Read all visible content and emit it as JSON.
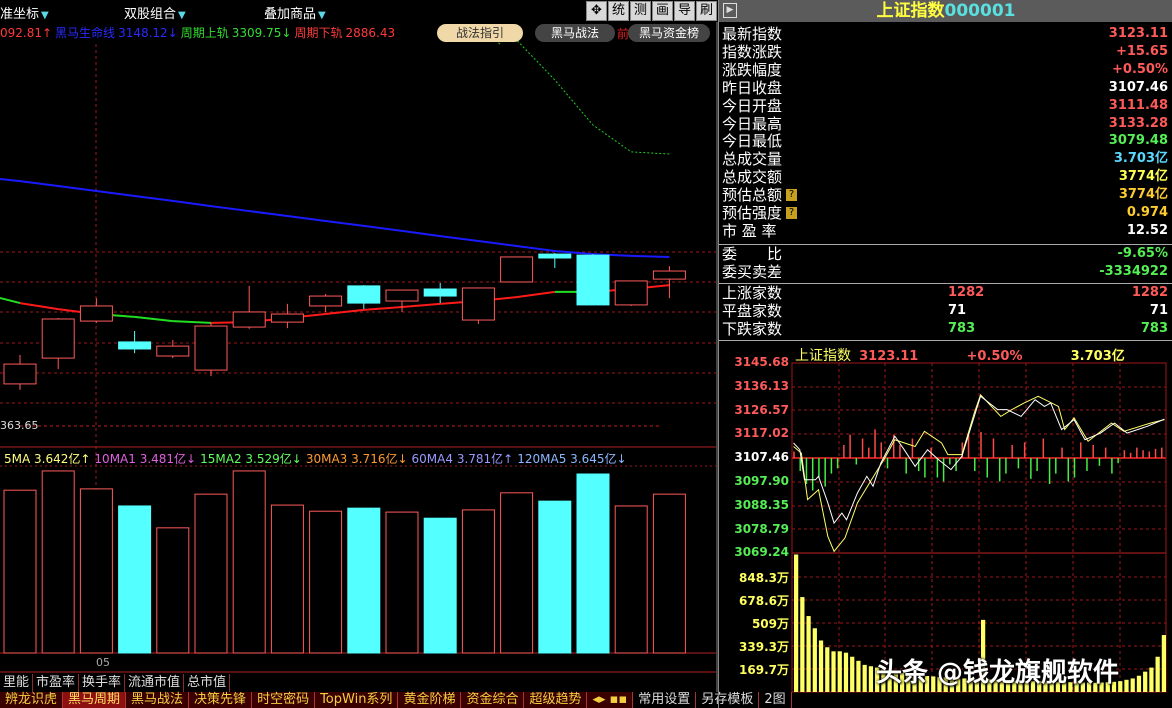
{
  "colors": {
    "up": "#ff5a5a",
    "down": "#54ffff",
    "grid": "#a01818",
    "lifeline": "#1a1aff",
    "support_up": "#ff1a1a",
    "support_down": "#22dd22",
    "upper_band": "#22cc22",
    "price_line": "#ffffff",
    "avg_line": "#ffff66",
    "vol_bar": "#ffff66"
  },
  "topbar": {
    "coord_label": "准坐标",
    "dual_label": "双股组合",
    "overlay_label": "叠加商品",
    "tools": [
      {
        "icon": "move-icon",
        "label": "✥"
      },
      {
        "label": "统"
      },
      {
        "label": "测"
      },
      {
        "label": "画"
      },
      {
        "label": "导"
      },
      {
        "label": "刷"
      }
    ]
  },
  "legend": {
    "v0": "092.81↑",
    "lifeline_name": "黑马生命线",
    "lifeline_val": "3148.12↓",
    "upper_name": "周期上轨",
    "upper_val": "3309.75↓",
    "lower_name": "周期下轨",
    "lower_val": "2886.43"
  },
  "pills": {
    "guide": "战法指引",
    "heima": "黑马战法",
    "front": "前",
    "fund": "黑马资金榜"
  },
  "main": {
    "low_marker": "363.65",
    "date_label": "05"
  },
  "kline": {
    "candles": [
      {
        "o": 3079.8,
        "h": 3090.9,
        "l": 3077.5,
        "c": 3087.4
      },
      {
        "o": 3089.7,
        "h": 3105.1,
        "l": 3085.5,
        "c": 3104.7
      },
      {
        "o": 3103.9,
        "h": 3112.7,
        "l": 3103.2,
        "c": 3109.7
      },
      {
        "o": 3095.9,
        "h": 3100.1,
        "l": 3091.6,
        "c": 3093.2
      },
      {
        "o": 3090.5,
        "h": 3096.6,
        "l": 3089.7,
        "c": 3094.3
      },
      {
        "o": 3085.1,
        "h": 3103.2,
        "l": 3082.8,
        "c": 3102.0
      },
      {
        "o": 3101.6,
        "h": 3117.4,
        "l": 3100.9,
        "c": 3107.4
      },
      {
        "o": 3103.5,
        "h": 3110.5,
        "l": 3101.2,
        "c": 3106.6
      },
      {
        "o": 3109.7,
        "h": 3114.3,
        "l": 3107.4,
        "c": 3113.5
      },
      {
        "o": 3117.4,
        "h": 3117.7,
        "l": 3108.5,
        "c": 3110.8
      },
      {
        "o": 3111.6,
        "h": 3115.8,
        "l": 3107.4,
        "c": 3115.8
      },
      {
        "o": 3116.2,
        "h": 3118.5,
        "l": 3110.8,
        "c": 3113.5
      },
      {
        "o": 3104.3,
        "h": 3116.6,
        "l": 3102.8,
        "c": 3116.6
      },
      {
        "o": 3118.9,
        "h": 3128.5,
        "l": 3118.9,
        "c": 3128.5
      },
      {
        "o": 3129.6,
        "h": 3130.0,
        "l": 3124.3,
        "c": 3128.1
      },
      {
        "o": 3129.2,
        "h": 3129.6,
        "l": 3110.1,
        "c": 3110.1
      },
      {
        "o": 3110.1,
        "h": 3119.3,
        "l": 3109.7,
        "c": 3119.3
      },
      {
        "o": 3120.0,
        "h": 3125.0,
        "l": 3112.7,
        "c": 3123.1
      }
    ],
    "lifeline": [
      3157.6,
      3155.7,
      3153.8,
      3151.9,
      3150.0,
      3148.0,
      3146.1,
      3144.2,
      3142.3,
      3140.4,
      3138.5,
      3136.5,
      3134.6,
      3132.7,
      3130.8,
      3129.6,
      3128.9,
      3128.5
    ],
    "support": [
      3110.8,
      3108.5,
      3106.6,
      3105.5,
      3103.9,
      3103.2,
      3103.5,
      3105.1,
      3106.6,
      3108.2,
      3109.3,
      3110.5,
      3111.6,
      3113.1,
      3115.1,
      3115.1,
      3116.2,
      3117.7
    ],
    "support_trend": [
      "down",
      "up",
      "up",
      "down",
      "down",
      "down",
      "up",
      "up",
      "up",
      "up",
      "up",
      "up",
      "up",
      "up",
      "up",
      "down",
      "up",
      "up"
    ],
    "upper_band_tail": [
      3216.3,
      3211.7,
      3196.4,
      3179.1,
      3168.8,
      3168.0
    ],
    "volume_yi": [
      3.72,
      4.16,
      3.75,
      3.36,
      2.86,
      3.63,
      4.16,
      3.38,
      3.24,
      3.31,
      3.22,
      3.08,
      3.27,
      3.66,
      3.47,
      4.09,
      3.36,
      3.63
    ]
  },
  "ma_legend": [
    {
      "text": "5MA 3.642亿↑",
      "color": "#ffff80"
    },
    {
      "text": "10MA1 3.481亿↓",
      "color": "#e060e0"
    },
    {
      "text": "15MA2 3.529亿↓",
      "color": "#60ff60"
    },
    {
      "text": "30MA3 3.716亿↓",
      "color": "#ff9a30"
    },
    {
      "text": "60MA4 3.781亿↑",
      "color": "#9a9aff"
    },
    {
      "text": "120MA5 3.645亿↓",
      "color": "#8ab8ff"
    }
  ],
  "tabs1": [
    "里能",
    "市盈率",
    "换手率",
    "流通市值",
    "总市值"
  ],
  "tabs2": [
    {
      "label": "辨龙识虎"
    },
    {
      "label": "黑马周期",
      "active": true
    },
    {
      "label": "黑马战法"
    },
    {
      "label": "决策先锋"
    },
    {
      "label": "时空密码"
    },
    {
      "label": "TopWin系列"
    },
    {
      "label": "黄金阶梯"
    },
    {
      "label": "资金综合"
    },
    {
      "label": "超级趋势"
    },
    {
      "label": "◂▸ ▪▪"
    },
    {
      "label": "常用设置",
      "plain": true
    },
    {
      "label": "另存模板",
      "plain": true
    },
    {
      "label": "2图",
      "plain": true
    }
  ],
  "right": {
    "title_name": "上证指数",
    "title_code": "000001",
    "rows": [
      {
        "label": "最新指数",
        "value": "3123.11",
        "color": "#ff5a5a"
      },
      {
        "label": "指数涨跌",
        "value": "+15.65",
        "color": "#ff5a5a"
      },
      {
        "label": "涨跌幅度",
        "value": "+0.50%",
        "color": "#ff5a5a"
      },
      {
        "label": "昨日收盘",
        "value": "3107.46",
        "color": "#ffffff"
      },
      {
        "label": "今日开盘",
        "value": "3111.48",
        "color": "#ff5a5a"
      },
      {
        "label": "今日最高",
        "value": "3133.28",
        "color": "#ff5a5a"
      },
      {
        "label": "今日最低",
        "value": "3079.48",
        "color": "#55ee55"
      },
      {
        "label": "总成交量",
        "value": "3.703亿",
        "color": "#5ad8ff"
      },
      {
        "label": "总成交额",
        "value": "3774亿",
        "color": "#ffff50"
      },
      {
        "label": "预估总额",
        "value": "3774亿",
        "color": "#ffcc30",
        "help": true
      },
      {
        "label": "预估强度",
        "value": "0.974",
        "color": "#ffcc30",
        "help": true
      },
      {
        "label": "市 盈 率",
        "value": "12.52",
        "color": "#ffffff"
      }
    ],
    "order_rows": [
      {
        "label": "委　　比",
        "value": "-9.65%",
        "color": "#55ee55"
      },
      {
        "label": "委买卖差",
        "value": "-3334922",
        "color": "#55ee55"
      }
    ],
    "breadth_rows": [
      {
        "label": "上涨家数",
        "mid": "1282",
        "value": "1282",
        "color": "#ff5a5a"
      },
      {
        "label": "平盘家数",
        "mid": "71",
        "value": "71",
        "color": "#ffffff"
      },
      {
        "label": "下跌家数",
        "mid": "783",
        "value": "783",
        "color": "#55ee55"
      }
    ],
    "mini": {
      "name": "上证指数",
      "price": "3123.11",
      "pct": "+0.50%",
      "vol": "3.703亿",
      "price_ticks": [
        "3145.68",
        "3136.13",
        "3126.57",
        "3117.02",
        "3107.46",
        "3097.90",
        "3088.35",
        "3078.79",
        "3069.24"
      ],
      "vol_ticks": [
        "848.3万",
        "678.6万",
        "509万",
        "339.3万",
        "169.7万"
      ],
      "prev_close": 3107.46,
      "price_range": [
        3069.24,
        3145.68
      ],
      "vol_max_wan": 1025,
      "minutes": 240,
      "price_line": [
        [
          1,
          3113.5
        ],
        [
          5,
          3110.8
        ],
        [
          8,
          3098.7
        ],
        [
          15,
          3098.7
        ],
        [
          17,
          3100.1
        ],
        [
          23,
          3089.4
        ],
        [
          27,
          3081.3
        ],
        [
          32,
          3085.3
        ],
        [
          35,
          3082.6
        ],
        [
          42,
          3093.4
        ],
        [
          48,
          3100.1
        ],
        [
          52,
          3096.1
        ],
        [
          57,
          3105.4
        ],
        [
          66,
          3116.2
        ],
        [
          72,
          3110.8
        ],
        [
          79,
          3104.1
        ],
        [
          87,
          3110.8
        ],
        [
          94,
          3106.8
        ],
        [
          102,
          3102.8
        ],
        [
          109,
          3108.1
        ],
        [
          113,
          3116.2
        ],
        [
          121,
          3132.3
        ],
        [
          132,
          3126.9
        ],
        [
          138,
          3126.9
        ],
        [
          147,
          3124.2
        ],
        [
          156,
          3130.9
        ],
        [
          162,
          3128.2
        ],
        [
          166,
          3129.6
        ],
        [
          173,
          3118.9
        ],
        [
          181,
          3122.9
        ],
        [
          188,
          3114.8
        ],
        [
          198,
          3117.5
        ],
        [
          207,
          3121.5
        ],
        [
          215,
          3117.5
        ],
        [
          228,
          3120.2
        ],
        [
          239,
          3123.1
        ]
      ],
      "avg_line": [
        [
          1,
          3112.1
        ],
        [
          6,
          3109.4
        ],
        [
          10,
          3090.7
        ],
        [
          17,
          3094.7
        ],
        [
          23,
          3075.9
        ],
        [
          27,
          3069.9
        ],
        [
          34,
          3075.3
        ],
        [
          42,
          3089.4
        ],
        [
          51,
          3098.7
        ],
        [
          59,
          3106.8
        ],
        [
          66,
          3114.8
        ],
        [
          79,
          3112.1
        ],
        [
          85,
          3118.2
        ],
        [
          96,
          3113.5
        ],
        [
          100,
          3108.8
        ],
        [
          109,
          3108.8
        ],
        [
          117,
          3125.6
        ],
        [
          121,
          3132.9
        ],
        [
          134,
          3124.2
        ],
        [
          141,
          3126.9
        ],
        [
          149,
          3129.6
        ],
        [
          158,
          3132.3
        ],
        [
          171,
          3128.2
        ],
        [
          175,
          3118.9
        ],
        [
          181,
          3123.6
        ],
        [
          190,
          3114.2
        ],
        [
          205,
          3121.5
        ],
        [
          213,
          3118.2
        ],
        [
          230,
          3121.5
        ],
        [
          239,
          3122.9
        ]
      ],
      "breadth_bars": [
        5,
        -10,
        -20,
        -25,
        -15,
        -22,
        -12,
        -8,
        10,
        18,
        -5,
        15,
        8,
        22,
        12,
        -8,
        18,
        10,
        -12,
        15,
        -10,
        -15,
        8,
        -15,
        -18,
        -5,
        -10,
        12,
        18,
        -10,
        20,
        -15,
        15,
        -18,
        -12,
        10,
        -8,
        12,
        -16,
        -10,
        15,
        -20,
        -12,
        8,
        -18,
        -15,
        12,
        -10,
        10,
        -6,
        8,
        -12,
        -4,
        6,
        4,
        8,
        6,
        5,
        7,
        8
      ],
      "volume_wan": [
        1014,
        700,
        560,
        470,
        380,
        330,
        300,
        300,
        290,
        260,
        230,
        200,
        190,
        180,
        170,
        160,
        150,
        140,
        130,
        125,
        120,
        118,
        115,
        110,
        108,
        105,
        100,
        100,
        98,
        95,
        532,
        93,
        90,
        90,
        88,
        85,
        85,
        82,
        80,
        80,
        78,
        78,
        75,
        75,
        72,
        72,
        70,
        70,
        68,
        70,
        72,
        75,
        80,
        90,
        100,
        120,
        150,
        180,
        260,
        420
      ]
    }
  },
  "watermark": "头条 @钱龙旗舰软件"
}
